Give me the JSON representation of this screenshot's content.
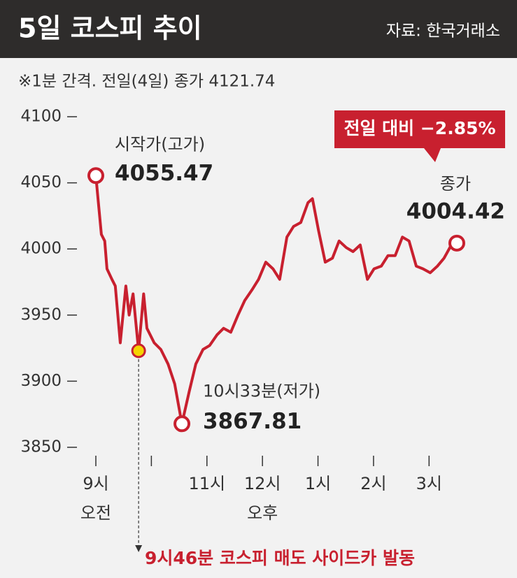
{
  "chart_data": {
    "type": "line",
    "title": "5일 코스피 추이",
    "source": "자료: 한국거래소",
    "subtitle": "※1분 간격. 전일(4일) 종가 4121.74",
    "x": [
      9.0,
      9.1,
      9.16,
      9.2,
      9.29,
      9.35,
      9.44,
      9.54,
      9.6,
      9.67,
      9.77,
      9.86,
      9.92,
      10.05,
      10.17,
      10.3,
      10.42,
      10.55,
      10.68,
      10.8,
      10.93,
      11.05,
      11.18,
      11.3,
      11.43,
      11.56,
      11.68,
      11.81,
      11.93,
      12.06,
      12.19,
      12.31,
      12.44,
      12.56,
      12.69,
      12.82,
      12.9,
      13.01,
      13.13,
      13.26,
      13.38,
      13.51,
      13.63,
      13.76,
      13.89,
      14.01,
      14.14,
      14.26,
      14.39,
      14.52,
      14.64,
      14.77,
      14.89,
      15.02,
      15.15,
      15.27,
      15.4,
      15.5
    ],
    "values": [
      4055.47,
      4011,
      4006,
      3985,
      3977,
      3972,
      3929,
      3972,
      3950,
      3966,
      3923,
      3966,
      3940,
      3929,
      3924,
      3913,
      3898,
      3867.81,
      3892,
      3913,
      3924,
      3927,
      3935,
      3940,
      3937,
      3950,
      3961,
      3969,
      3977,
      3990,
      3985,
      3977,
      4009,
      4017,
      4020,
      4035,
      4038,
      4014,
      3990,
      3993,
      4006,
      4001,
      3998,
      4003,
      3977,
      3985,
      3987,
      3995,
      3995,
      4009,
      4006,
      3987,
      3985,
      3982,
      3987,
      3993,
      4003,
      4004.42
    ],
    "color": "#c8202f",
    "xlim": [
      9,
      15.5
    ],
    "xticks": [
      {
        "value": 9,
        "label": "9시"
      },
      {
        "value": 10,
        "label": null
      },
      {
        "value": 11,
        "label": "11시"
      },
      {
        "value": 12,
        "label": "12시"
      },
      {
        "value": 13,
        "label": "1시"
      },
      {
        "value": 14,
        "label": "2시"
      },
      {
        "value": 15,
        "label": "3시"
      }
    ],
    "x_sublabels": [
      {
        "x": 9,
        "text": "오전"
      },
      {
        "x": 12,
        "text": "오후"
      }
    ],
    "ylim": [
      3850,
      4100
    ],
    "yticks": [
      3850,
      3900,
      3950,
      4000,
      4050,
      4100
    ],
    "high_label": "시작가(고가)",
    "low_label": "10시33분(저가)",
    "close_label": "종가",
    "change_label": "전일 대비 −2.85%",
    "sidecar_x": 9.77,
    "sidecar_label": "9시46분 코스피 매도 사이드카 발동"
  }
}
